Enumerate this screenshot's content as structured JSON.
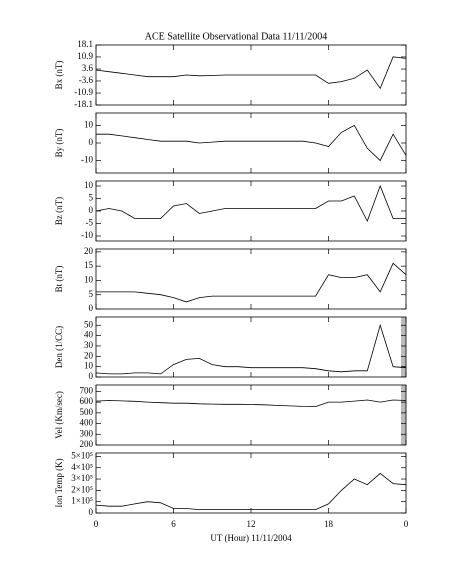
{
  "chart_data": [
    {
      "type": "line",
      "title": "ACE Satellite Observational Data   11/11/2004",
      "ylabel": "Bx (nT)",
      "color": "#000000",
      "x": [
        0,
        1,
        2,
        3,
        4,
        5,
        6,
        7,
        8,
        9,
        10,
        11,
        12,
        13,
        14,
        15,
        16,
        17,
        18,
        19,
        20,
        21,
        22,
        23,
        24
      ],
      "values": [
        3,
        2,
        1,
        0,
        -1,
        -1,
        -1,
        0,
        -0.5,
        -0.3,
        0,
        0,
        0,
        0,
        0,
        0,
        0,
        0,
        -5,
        -4,
        -2,
        3,
        -8,
        11,
        10
      ],
      "ylim": [
        -18.1,
        18.1
      ],
      "yticks": [
        -18.1,
        -10.9,
        -3.6,
        3.6,
        10.9,
        18.1
      ]
    },
    {
      "type": "line",
      "ylabel": "By (nT)",
      "color": "#000000",
      "x": [
        0,
        1,
        2,
        3,
        4,
        5,
        6,
        7,
        8,
        9,
        10,
        11,
        12,
        13,
        14,
        15,
        16,
        17,
        18,
        19,
        20,
        21,
        22,
        23,
        24
      ],
      "values": [
        5,
        5,
        4,
        3,
        2,
        1,
        1,
        1,
        0,
        0.5,
        1,
        1,
        1,
        1,
        1,
        1,
        1,
        0,
        -2,
        6,
        10,
        -3,
        -10,
        5,
        -7
      ],
      "ylim": [
        -17,
        17
      ],
      "yticks": [
        -10,
        0,
        10
      ]
    },
    {
      "type": "line",
      "ylabel": "Bz (nT)",
      "color": "#000000",
      "x": [
        0,
        1,
        2,
        3,
        4,
        5,
        6,
        7,
        8,
        9,
        10,
        11,
        12,
        13,
        14,
        15,
        16,
        17,
        18,
        19,
        20,
        21,
        22,
        23,
        24
      ],
      "values": [
        0,
        1,
        0,
        -3,
        -3,
        -3,
        2,
        3,
        -1,
        0,
        1,
        1,
        1,
        1,
        1,
        1,
        1,
        1,
        4,
        4,
        6,
        -4,
        10,
        -3,
        -3
      ],
      "ylim": [
        -12,
        12
      ],
      "yticks": [
        -10,
        -5,
        0,
        5,
        10
      ]
    },
    {
      "type": "line",
      "ylabel": "Bt (nT)",
      "color": "#000000",
      "x": [
        0,
        1,
        2,
        3,
        4,
        5,
        6,
        7,
        8,
        9,
        10,
        11,
        12,
        13,
        14,
        15,
        16,
        17,
        18,
        19,
        20,
        21,
        22,
        23,
        24
      ],
      "values": [
        6,
        6,
        6,
        6,
        5.5,
        5,
        4,
        2.5,
        4,
        4.5,
        4.5,
        4.5,
        4.5,
        4.5,
        4.5,
        4.5,
        4.5,
        4.5,
        12,
        11,
        11,
        12,
        6,
        16,
        12
      ],
      "ylim": [
        0,
        21
      ],
      "yticks": [
        0,
        5,
        10,
        15,
        20
      ]
    },
    {
      "type": "line",
      "ylabel": "Den (1/CC)",
      "color": "#000000",
      "x": [
        0,
        1,
        2,
        3,
        4,
        5,
        6,
        7,
        8,
        9,
        10,
        11,
        12,
        13,
        14,
        15,
        16,
        17,
        18,
        19,
        20,
        21,
        22,
        23,
        24
      ],
      "values": [
        4,
        3,
        3,
        4,
        4,
        3,
        12,
        17,
        18,
        12,
        10,
        10,
        9,
        9,
        9,
        9,
        9,
        8,
        6,
        5,
        6,
        6,
        50,
        10,
        9
      ],
      "ylim": [
        0,
        58
      ],
      "yticks": [
        0,
        10,
        20,
        30,
        40,
        50
      ]
    },
    {
      "type": "line",
      "ylabel": "Vel (Km/sec)",
      "color": "#000000",
      "x": [
        0,
        1,
        2,
        3,
        4,
        5,
        6,
        7,
        8,
        9,
        10,
        11,
        12,
        13,
        14,
        15,
        16,
        17,
        18,
        19,
        20,
        21,
        22,
        23,
        24
      ],
      "values": [
        610,
        615,
        612,
        608,
        600,
        595,
        590,
        590,
        585,
        582,
        580,
        580,
        578,
        575,
        570,
        565,
        560,
        558,
        600,
        600,
        610,
        620,
        600,
        620,
        615
      ],
      "ylim": [
        200,
        760
      ],
      "yticks": [
        200,
        300,
        400,
        500,
        600,
        700
      ]
    },
    {
      "type": "line",
      "ylabel": "Ion Temp (K)",
      "xlabel": "UT (Hour)  11/11/2004",
      "color": "#000000",
      "x": [
        0,
        1,
        2,
        3,
        4,
        5,
        6,
        7,
        8,
        9,
        10,
        11,
        12,
        13,
        14,
        15,
        16,
        17,
        18,
        19,
        20,
        21,
        22,
        23,
        24
      ],
      "values": [
        70000,
        60000,
        60000,
        80000,
        100000,
        90000,
        40000,
        40000,
        30000,
        30000,
        30000,
        30000,
        30000,
        30000,
        30000,
        30000,
        30000,
        30000,
        80000,
        200000,
        300000,
        250000,
        350000,
        260000,
        250000
      ],
      "ylim": [
        0,
        530000
      ],
      "yticks": [
        0,
        {
          "value": 100000,
          "label": "1×10⁵"
        },
        {
          "value": 200000,
          "label": "2×10⁵"
        },
        {
          "value": 300000,
          "label": "3×10⁵"
        },
        {
          "value": 400000,
          "label": "4×10⁵"
        },
        {
          "value": 500000,
          "label": "5×10⁵"
        }
      ],
      "xlim": [
        0,
        24
      ],
      "xticks": [
        0,
        6,
        12,
        18,
        {
          "value": 24,
          "label": "0"
        }
      ]
    }
  ]
}
